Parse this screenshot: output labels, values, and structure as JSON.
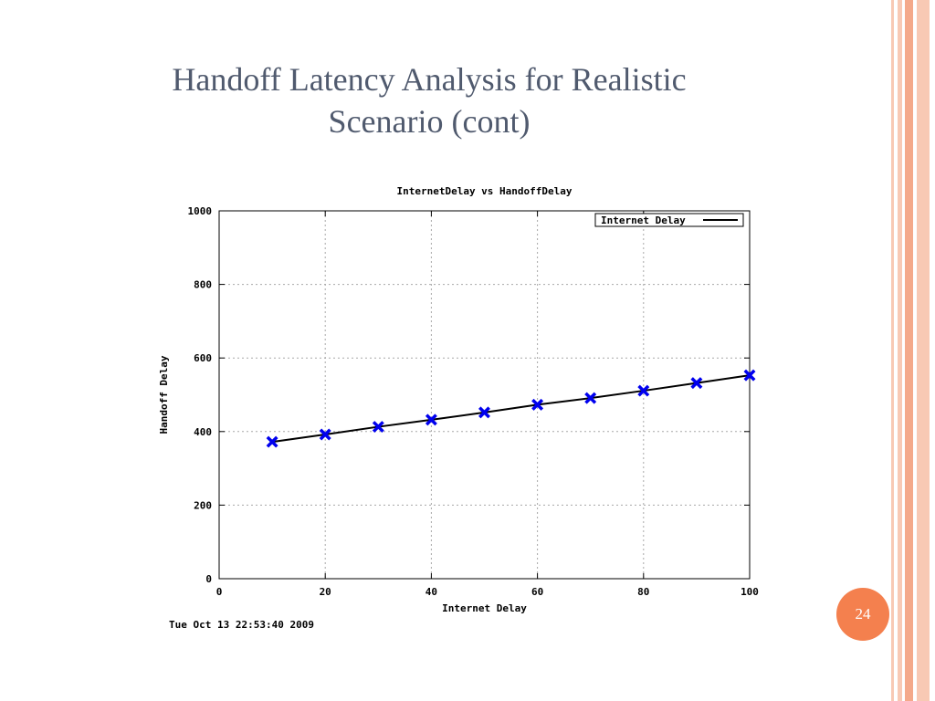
{
  "slide": {
    "title_line1": "Handoff Latency Analysis for Realistic",
    "title_line2": "Scenario (cont)",
    "page_number": "24",
    "theme_colors": {
      "title_text": "#505a6e",
      "border_peach": "#f8c9b4",
      "border_salmon": "#f4a98a",
      "page_badge": "#f4804e"
    }
  },
  "chart_data": {
    "type": "line",
    "title": "InternetDelay vs HandoffDelay",
    "xlabel": "Internet Delay",
    "ylabel": "Handoff Delay",
    "xlim": [
      0,
      100
    ],
    "ylim": [
      0,
      1000
    ],
    "x_ticks": [
      "0",
      "20",
      "40",
      "60",
      "80",
      "100"
    ],
    "y_ticks": [
      "0",
      "200",
      "400",
      "600",
      "800",
      "1000"
    ],
    "grid": true,
    "legend_position": "top-right",
    "timestamp": "Tue Oct 13 22:53:40 2009",
    "series": [
      {
        "name": "Internet Delay",
        "line_color": "#000000",
        "marker_color": "#0000ee",
        "marker": "x",
        "x": [
          10,
          20,
          30,
          40,
          50,
          60,
          70,
          80,
          90,
          100
        ],
        "y": [
          372,
          392,
          413,
          432,
          452,
          473,
          491,
          511,
          532,
          553
        ]
      }
    ]
  }
}
